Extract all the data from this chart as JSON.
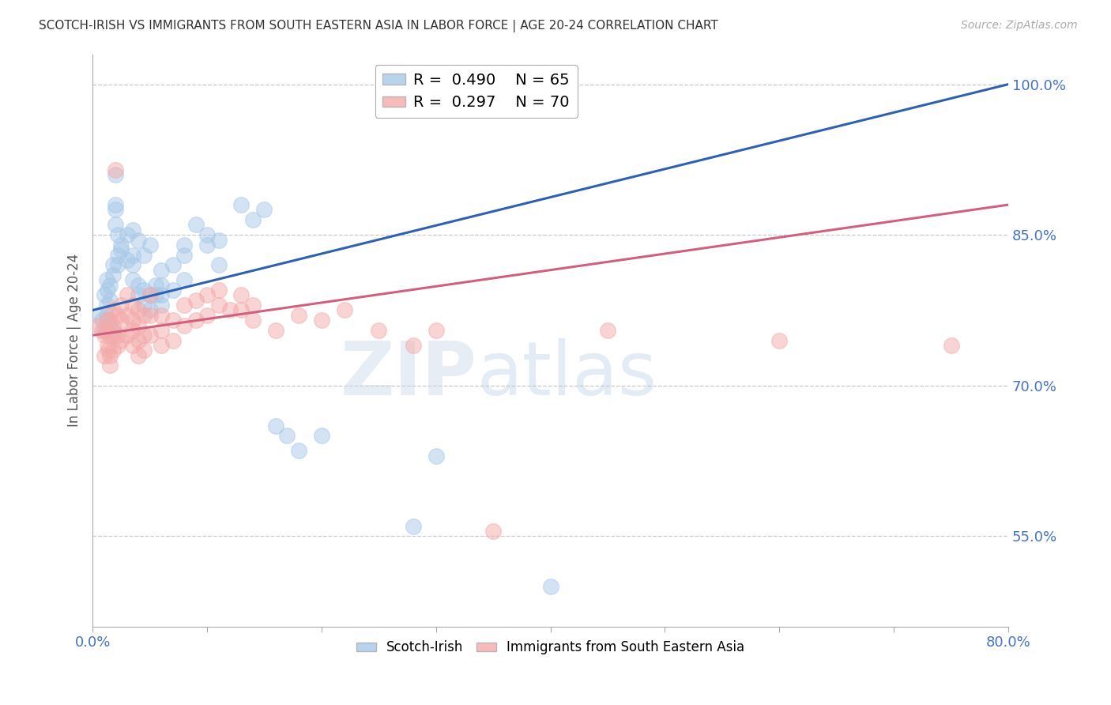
{
  "title": "SCOTCH-IRISH VS IMMIGRANTS FROM SOUTH EASTERN ASIA IN LABOR FORCE | AGE 20-24 CORRELATION CHART",
  "source": "Source: ZipAtlas.com",
  "ylabel": "In Labor Force | Age 20-24",
  "y_ticks_right": [
    55.0,
    70.0,
    85.0,
    100.0
  ],
  "xlim": [
    0.0,
    80.0
  ],
  "ylim": [
    46.0,
    103.0
  ],
  "blue_R": 0.49,
  "blue_N": 65,
  "pink_R": 0.297,
  "pink_N": 70,
  "blue_color": "#a8c8e8",
  "pink_color": "#f4aaaa",
  "blue_line_color": "#3060b0",
  "pink_line_color": "#d06080",
  "legend_blue_label": "Scotch-Irish",
  "legend_pink_label": "Immigrants from South Eastern Asia",
  "watermark_zip": "ZIP",
  "watermark_atlas": "atlas",
  "title_color": "#333333",
  "axis_color": "#4472c4",
  "grid_color": "#c8c8c8",
  "blue_scatter": [
    [
      0.5,
      77.0
    ],
    [
      0.8,
      76.5
    ],
    [
      1.0,
      79.0
    ],
    [
      1.0,
      75.5
    ],
    [
      1.2,
      80.5
    ],
    [
      1.2,
      78.0
    ],
    [
      1.2,
      77.0
    ],
    [
      1.3,
      79.5
    ],
    [
      1.5,
      80.0
    ],
    [
      1.5,
      78.5
    ],
    [
      1.5,
      76.0
    ],
    [
      1.8,
      81.0
    ],
    [
      1.8,
      82.0
    ],
    [
      1.8,
      75.5
    ],
    [
      2.0,
      91.0
    ],
    [
      2.0,
      88.0
    ],
    [
      2.0,
      87.5
    ],
    [
      2.0,
      86.0
    ],
    [
      2.2,
      85.0
    ],
    [
      2.2,
      83.0
    ],
    [
      2.2,
      82.0
    ],
    [
      2.5,
      84.0
    ],
    [
      2.5,
      83.5
    ],
    [
      3.0,
      85.0
    ],
    [
      3.0,
      82.5
    ],
    [
      3.5,
      85.5
    ],
    [
      3.5,
      83.0
    ],
    [
      3.5,
      82.0
    ],
    [
      3.5,
      80.5
    ],
    [
      4.0,
      84.5
    ],
    [
      4.0,
      80.0
    ],
    [
      4.0,
      79.0
    ],
    [
      4.5,
      83.0
    ],
    [
      4.5,
      79.5
    ],
    [
      4.5,
      78.0
    ],
    [
      5.0,
      84.0
    ],
    [
      5.0,
      79.0
    ],
    [
      5.0,
      77.5
    ],
    [
      5.5,
      80.0
    ],
    [
      5.5,
      79.0
    ],
    [
      6.0,
      81.5
    ],
    [
      6.0,
      80.0
    ],
    [
      6.0,
      79.0
    ],
    [
      6.0,
      78.0
    ],
    [
      7.0,
      82.0
    ],
    [
      7.0,
      79.5
    ],
    [
      8.0,
      84.0
    ],
    [
      8.0,
      83.0
    ],
    [
      8.0,
      80.5
    ],
    [
      9.0,
      86.0
    ],
    [
      10.0,
      85.0
    ],
    [
      10.0,
      84.0
    ],
    [
      11.0,
      84.5
    ],
    [
      11.0,
      82.0
    ],
    [
      13.0,
      88.0
    ],
    [
      14.0,
      86.5
    ],
    [
      15.0,
      87.5
    ],
    [
      16.0,
      66.0
    ],
    [
      17.0,
      65.0
    ],
    [
      18.0,
      63.5
    ],
    [
      20.0,
      65.0
    ],
    [
      28.0,
      56.0
    ],
    [
      30.0,
      63.0
    ],
    [
      40.0,
      50.0
    ]
  ],
  "pink_scatter": [
    [
      0.5,
      76.0
    ],
    [
      0.8,
      75.5
    ],
    [
      1.0,
      75.0
    ],
    [
      1.0,
      73.0
    ],
    [
      1.2,
      76.5
    ],
    [
      1.2,
      75.5
    ],
    [
      1.3,
      74.0
    ],
    [
      1.4,
      73.5
    ],
    [
      1.5,
      76.5
    ],
    [
      1.5,
      75.0
    ],
    [
      1.5,
      73.0
    ],
    [
      1.5,
      72.0
    ],
    [
      1.8,
      77.5
    ],
    [
      1.8,
      76.0
    ],
    [
      1.8,
      75.0
    ],
    [
      1.8,
      73.5
    ],
    [
      2.0,
      91.5
    ],
    [
      2.2,
      77.0
    ],
    [
      2.2,
      75.0
    ],
    [
      2.2,
      74.0
    ],
    [
      2.5,
      78.0
    ],
    [
      2.5,
      76.5
    ],
    [
      2.5,
      74.5
    ],
    [
      3.0,
      79.0
    ],
    [
      3.0,
      77.0
    ],
    [
      3.0,
      75.0
    ],
    [
      3.5,
      78.0
    ],
    [
      3.5,
      76.5
    ],
    [
      3.5,
      75.5
    ],
    [
      3.5,
      74.0
    ],
    [
      4.0,
      77.5
    ],
    [
      4.0,
      76.0
    ],
    [
      4.0,
      74.5
    ],
    [
      4.0,
      73.0
    ],
    [
      4.5,
      77.0
    ],
    [
      4.5,
      75.0
    ],
    [
      4.5,
      73.5
    ],
    [
      5.0,
      79.0
    ],
    [
      5.0,
      77.0
    ],
    [
      5.0,
      75.0
    ],
    [
      6.0,
      77.0
    ],
    [
      6.0,
      75.5
    ],
    [
      6.0,
      74.0
    ],
    [
      7.0,
      76.5
    ],
    [
      7.0,
      74.5
    ],
    [
      8.0,
      78.0
    ],
    [
      8.0,
      76.0
    ],
    [
      9.0,
      78.5
    ],
    [
      9.0,
      76.5
    ],
    [
      10.0,
      79.0
    ],
    [
      10.0,
      77.0
    ],
    [
      11.0,
      79.5
    ],
    [
      11.0,
      78.0
    ],
    [
      12.0,
      77.5
    ],
    [
      13.0,
      79.0
    ],
    [
      13.0,
      77.5
    ],
    [
      14.0,
      78.0
    ],
    [
      14.0,
      76.5
    ],
    [
      16.0,
      75.5
    ],
    [
      18.0,
      77.0
    ],
    [
      20.0,
      76.5
    ],
    [
      22.0,
      77.5
    ],
    [
      25.0,
      75.5
    ],
    [
      28.0,
      74.0
    ],
    [
      30.0,
      75.5
    ],
    [
      35.0,
      55.5
    ],
    [
      45.0,
      75.5
    ],
    [
      60.0,
      74.5
    ],
    [
      75.0,
      74.0
    ]
  ],
  "blue_trendline": [
    [
      0,
      77.5
    ],
    [
      80,
      100.0
    ]
  ],
  "pink_trendline": [
    [
      0,
      75.0
    ],
    [
      80,
      88.0
    ]
  ]
}
